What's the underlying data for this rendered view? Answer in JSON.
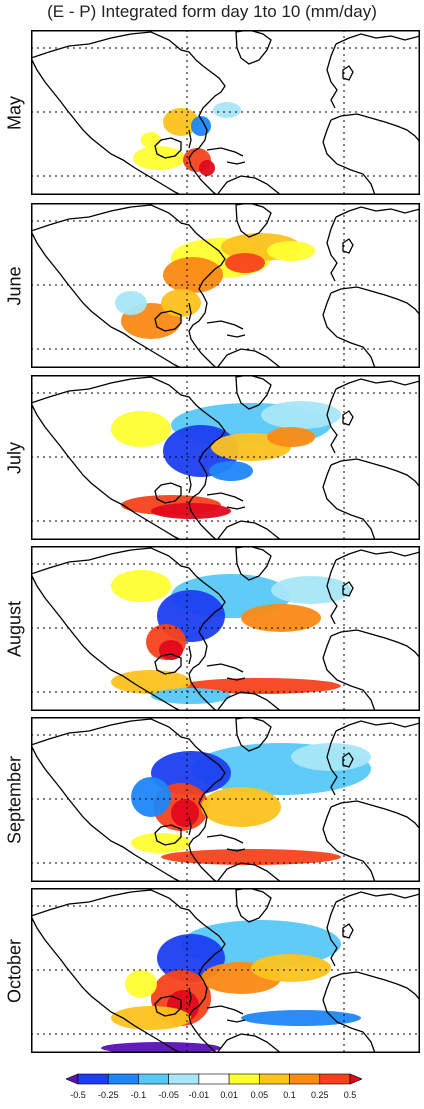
{
  "title": "(E - P) Integrated form day 1to 10 (mm/day)",
  "panels": [
    {
      "month": "May"
    },
    {
      "month": "June"
    },
    {
      "month": "July"
    },
    {
      "month": "August"
    },
    {
      "month": "September"
    },
    {
      "month": "October"
    }
  ],
  "colorbar": {
    "tick_labels": [
      "-0.5",
      "-0.25",
      "-0.1",
      "-0.05",
      "-0.01",
      "0.01",
      "0.05",
      "0.1",
      "0.25",
      "0.5"
    ],
    "colors": [
      "#5a10b8",
      "#1c3ef0",
      "#1f86f5",
      "#56c8f5",
      "#a8e6f8",
      "#ffffff",
      "#ffff30",
      "#fcc320",
      "#fb8a14",
      "#f5421c",
      "#e0081c"
    ]
  },
  "colors": {
    "land_outline": "#000000",
    "grid": "#000000",
    "frame": "#000000"
  }
}
